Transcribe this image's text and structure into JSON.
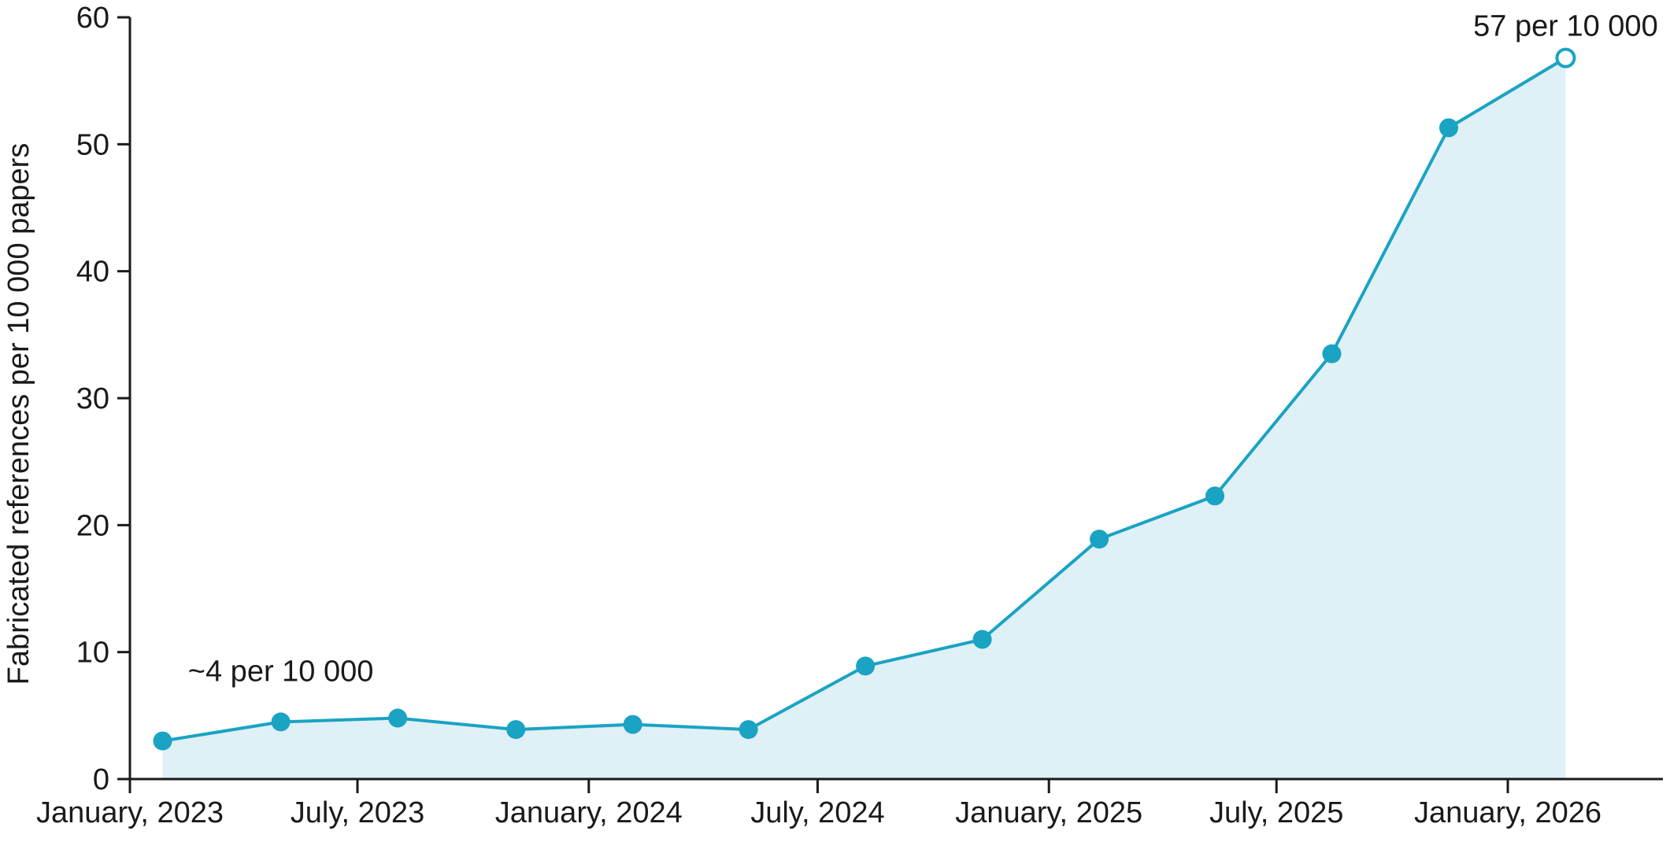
{
  "colors": {
    "line": "#1aa3c3",
    "area": "#dff0f6",
    "axis": "#1a1a1a",
    "text": "#1a1a1a",
    "marker_fill": "#1aa3c3",
    "marker_open_fill": "#ffffff"
  },
  "chart_data": {
    "type": "area",
    "title": "",
    "xlabel": "",
    "ylabel": "Fabricated references per 10 000 papers",
    "x_tick_labels": [
      {
        "label": "January, 2023",
        "date": "2023-01-01"
      },
      {
        "label": "July, 2023",
        "date": "2023-07-01"
      },
      {
        "label": "January, 2024",
        "date": "2024-01-01"
      },
      {
        "label": "July, 2024",
        "date": "2024-07-01"
      },
      {
        "label": "January, 2025",
        "date": "2025-01-01"
      },
      {
        "label": "July, 2025",
        "date": "2025-07-01"
      },
      {
        "label": "January, 2026",
        "date": "2026-01-01"
      }
    ],
    "y_ticks": [
      0,
      10,
      20,
      30,
      40,
      50,
      60
    ],
    "ylim": [
      0,
      60
    ],
    "xlim": [
      "2023-01-01",
      "2026-04-30"
    ],
    "grid": false,
    "series": [
      {
        "points": [
          {
            "date": "2023-01-27",
            "value": 3.0
          },
          {
            "date": "2023-05-01",
            "value": 4.5
          },
          {
            "date": "2023-08-02",
            "value": 4.8
          },
          {
            "date": "2023-11-04",
            "value": 3.9
          },
          {
            "date": "2024-02-05",
            "value": 4.3
          },
          {
            "date": "2024-05-07",
            "value": 3.9
          },
          {
            "date": "2024-08-08",
            "value": 8.9
          },
          {
            "date": "2024-11-09",
            "value": 11.0
          },
          {
            "date": "2025-02-10",
            "value": 18.9
          },
          {
            "date": "2025-05-13",
            "value": 22.3
          },
          {
            "date": "2025-08-14",
            "value": 33.5
          },
          {
            "date": "2025-11-15",
            "value": 51.3
          },
          {
            "date": "2026-02-16",
            "value": 56.8,
            "open_marker": true
          }
        ]
      }
    ],
    "annotations": [
      {
        "text": "~4 per 10 000",
        "anchor_point": 1
      },
      {
        "text": "57 per 10 000",
        "anchor_point": 12
      }
    ]
  }
}
